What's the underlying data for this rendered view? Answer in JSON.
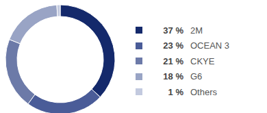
{
  "chart_data": {
    "type": "donut",
    "categories": [
      "2M",
      "OCEAN 3",
      "CKYE",
      "G6",
      "Others"
    ],
    "values": [
      37,
      23,
      21,
      18,
      1
    ],
    "value_labels": [
      "37 %",
      "23 %",
      "21 %",
      "18 %",
      "1 %"
    ],
    "colors": [
      "#14296b",
      "#4a5c98",
      "#6c7aa8",
      "#99a4c5",
      "#c3cadf"
    ],
    "legend": "right"
  }
}
